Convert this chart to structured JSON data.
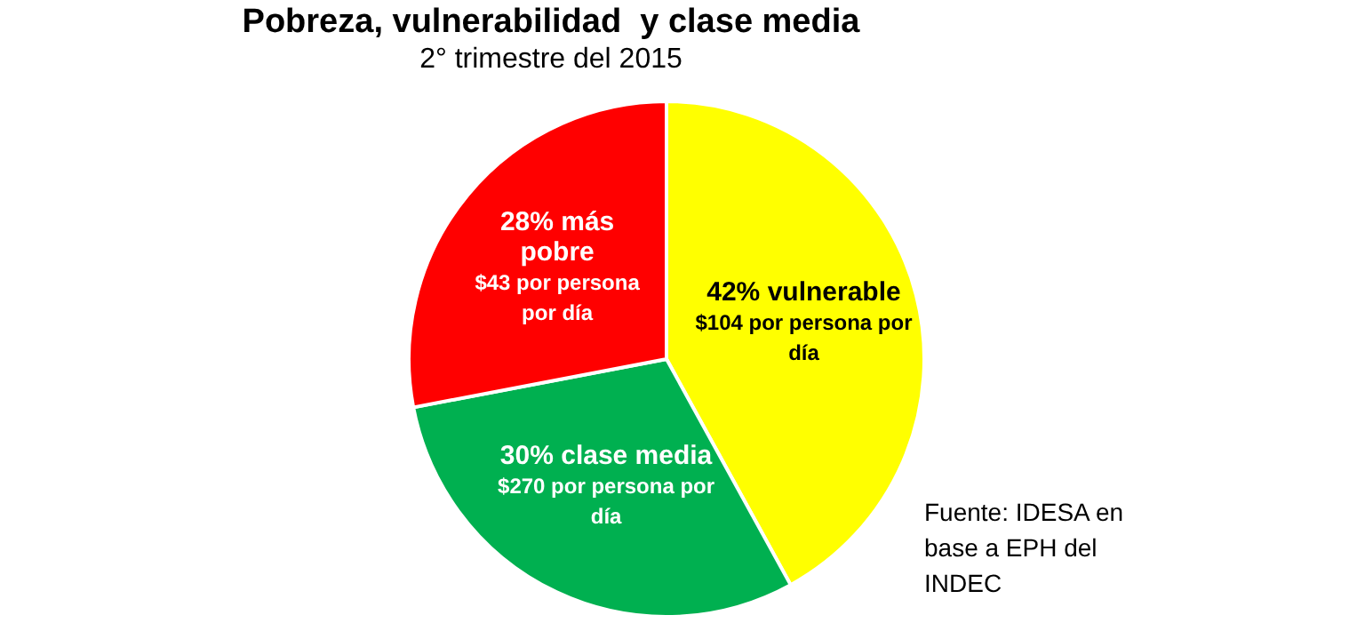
{
  "chart_data": {
    "type": "pie",
    "title": "Pobreza, vulnerabilidad  y clase media",
    "subtitle": "2° trimestre del 2015",
    "categories": [
      "42% vulnerable",
      "30% clase media",
      "28% más pobre"
    ],
    "values": [
      42,
      30,
      28
    ],
    "colors": [
      "#ffff00",
      "#00b050",
      "#ff0000"
    ],
    "legend": false,
    "annotations": [
      {
        "text": "$104 por persona por día",
        "x": "42% vulnerable"
      },
      {
        "text": "$270 por persona por día",
        "x": "30% clase media"
      },
      {
        "text": "$43 por persona por día",
        "x": "28% más pobre"
      },
      "Fuente: IDESA en base a EPH del INDEC"
    ]
  }
}
